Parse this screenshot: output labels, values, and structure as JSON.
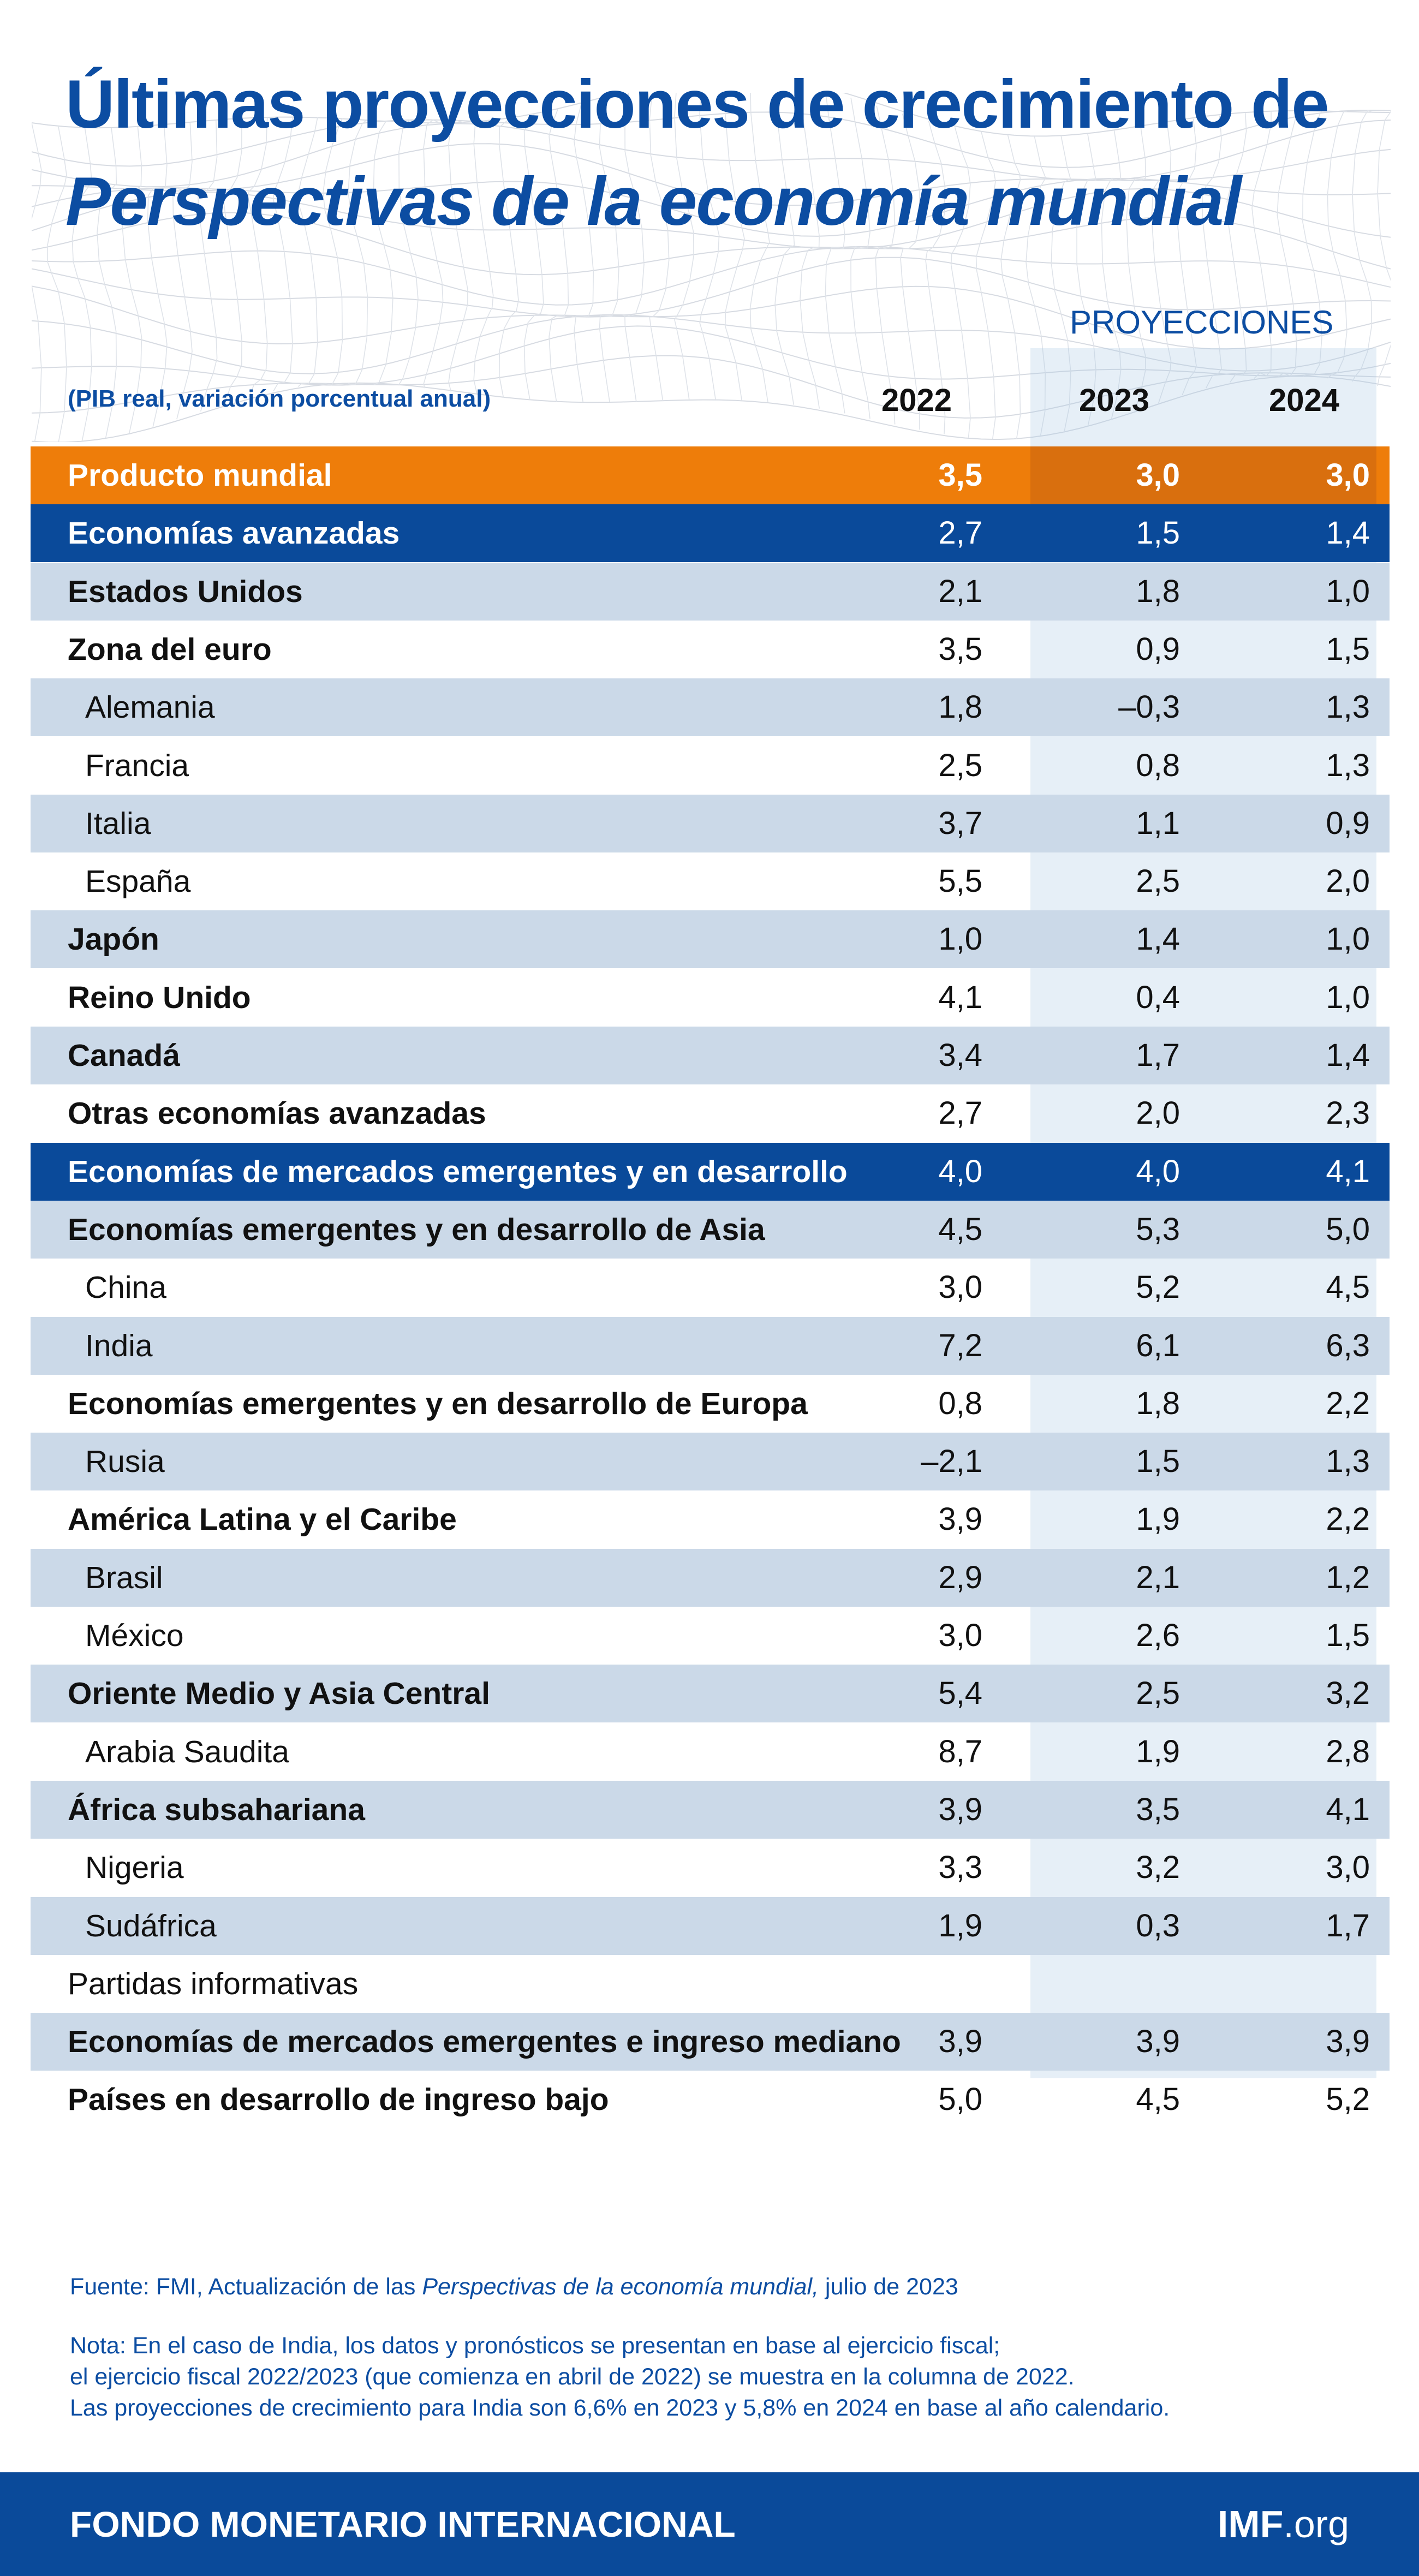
{
  "title_line1": "Últimas proyecciones de crecimiento de",
  "title_line2": "Perspectivas de la economía mundial",
  "projection_label": "PROYECCIONES",
  "subtitle": "(PIB real, variación porcentual anual)",
  "colors": {
    "brand_blue": "#0a4a9a",
    "world_orange": "#ee7d0a",
    "row_shade": "#cbd9e8"
  },
  "chart_data": {
    "type": "table",
    "columns": [
      "2022",
      "2023",
      "2024"
    ],
    "projected_columns": [
      "2023",
      "2024"
    ],
    "rows": [
      {
        "label": "Producto mundial",
        "values": [
          "3,5",
          "3,0",
          "3,0"
        ]
      },
      {
        "label": "Economías avanzadas",
        "values": [
          "2,7",
          "1,5",
          "1,4"
        ]
      },
      {
        "label": "Estados Unidos",
        "values": [
          "2,1",
          "1,8",
          "1,0"
        ]
      },
      {
        "label": "Zona del euro",
        "values": [
          "3,5",
          "0,9",
          "1,5"
        ]
      },
      {
        "label": "Alemania",
        "values": [
          "1,8",
          "–0,3",
          "1,3"
        ]
      },
      {
        "label": "Francia",
        "values": [
          "2,5",
          "0,8",
          "1,3"
        ]
      },
      {
        "label": "Italia",
        "values": [
          "3,7",
          "1,1",
          "0,9"
        ]
      },
      {
        "label": "España",
        "values": [
          "5,5",
          "2,5",
          "2,0"
        ]
      },
      {
        "label": "Japón",
        "values": [
          "1,0",
          "1,4",
          "1,0"
        ]
      },
      {
        "label": "Reino Unido",
        "values": [
          "4,1",
          "0,4",
          "1,0"
        ]
      },
      {
        "label": "Canadá",
        "values": [
          "3,4",
          "1,7",
          "1,4"
        ]
      },
      {
        "label": "Otras economías avanzadas",
        "values": [
          "2,7",
          "2,0",
          "2,3"
        ]
      },
      {
        "label": "Economías de mercados emergentes y en desarrollo",
        "values": [
          "4,0",
          "4,0",
          "4,1"
        ]
      },
      {
        "label": "Economías emergentes y en desarrollo de Asia",
        "values": [
          "4,5",
          "5,3",
          "5,0"
        ]
      },
      {
        "label": "China",
        "values": [
          "3,0",
          "5,2",
          "4,5"
        ]
      },
      {
        "label": "India",
        "values": [
          "7,2",
          "6,1",
          "6,3"
        ]
      },
      {
        "label": "Economías emergentes y en desarrollo de Europa",
        "values": [
          "0,8",
          "1,8",
          "2,2"
        ]
      },
      {
        "label": "Rusia",
        "values": [
          "–2,1",
          "1,5",
          "1,3"
        ]
      },
      {
        "label": "América Latina y el Caribe",
        "values": [
          "3,9",
          "1,9",
          "2,2"
        ]
      },
      {
        "label": "Brasil",
        "values": [
          "2,9",
          "2,1",
          "1,2"
        ]
      },
      {
        "label": "México",
        "values": [
          "3,0",
          "2,6",
          "1,5"
        ]
      },
      {
        "label": "Oriente Medio y Asia Central",
        "values": [
          "5,4",
          "2,5",
          "3,2"
        ]
      },
      {
        "label": "Arabia Saudita",
        "values": [
          "8,7",
          "1,9",
          "2,8"
        ]
      },
      {
        "label": "África subsahariana",
        "values": [
          "3,9",
          "3,5",
          "4,1"
        ]
      },
      {
        "label": "Nigeria",
        "values": [
          "3,3",
          "3,2",
          "3,0"
        ]
      },
      {
        "label": "Sudáfrica",
        "values": [
          "1,9",
          "0,3",
          "1,7"
        ]
      },
      {
        "label": "Partidas informativas",
        "values": [
          "",
          "",
          ""
        ]
      },
      {
        "label": "Economías de mercados emergentes e ingreso mediano",
        "values": [
          "3,9",
          "3,9",
          "3,9"
        ]
      },
      {
        "label": "Países en desarrollo de ingreso bajo",
        "values": [
          "5,0",
          "4,5",
          "5,2"
        ]
      }
    ]
  },
  "source_prefix": "Fuente: FMI, Actualización de las ",
  "source_italic": "Perspectivas de la economía mundial,",
  "source_suffix": " julio de 2023",
  "note_lines": [
    "Nota: En el caso de India, los datos y pronósticos se presentan en base al ejercicio fiscal;",
    "el ejercicio fiscal 2022/2023 (que comienza en abril de 2022) se muestra en la columna de 2022.",
    "Las proyecciones de crecimiento para India son 6,6% en 2023 y 5,8% en 2024 en base al año calendario."
  ],
  "footer": {
    "organization": "FONDO MONETARIO INTERNACIONAL",
    "site_bold": "IMF",
    "site_rest": ".org"
  }
}
